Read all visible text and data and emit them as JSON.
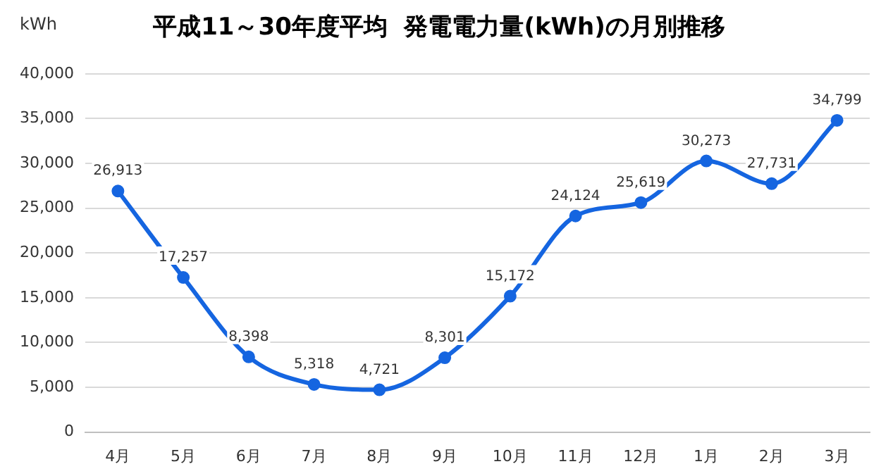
{
  "chart_data": {
    "type": "line",
    "title": "平成11～30年度平均  発電電力量(kWh)の月別推移",
    "ylabel": "kWh",
    "categories": [
      "4月",
      "5月",
      "6月",
      "7月",
      "8月",
      "9月",
      "10月",
      "11月",
      "12月",
      "1月",
      "2月",
      "3月"
    ],
    "series": [
      {
        "color": "#1565e0",
        "values": [
          26913,
          17257,
          8398,
          5318,
          4721,
          8301,
          15172,
          24124,
          25619,
          30273,
          27731,
          34799
        ],
        "value_labels": [
          "26,913",
          "17,257",
          "8,398",
          "5,318",
          "4,721",
          "8,301",
          "15,172",
          "24,124",
          "25,619",
          "30,273",
          "27,731",
          "34,799"
        ]
      }
    ],
    "ylim": [
      0,
      40000
    ],
    "yticks": [
      0,
      {
        "value": 5000,
        "label": "5,000"
      },
      {
        "value": 10000,
        "label": "10,000"
      },
      {
        "value": 15000,
        "label": "15,000"
      },
      {
        "value": 20000,
        "label": "20,000"
      },
      {
        "value": 25000,
        "label": "25,000"
      },
      {
        "value": 30000,
        "label": "30,000"
      },
      {
        "value": 35000,
        "label": "35,000"
      },
      {
        "value": 40000,
        "label": "40,000"
      }
    ],
    "grid": "y",
    "legend": false,
    "marker": "circle",
    "line_style": "solid"
  }
}
